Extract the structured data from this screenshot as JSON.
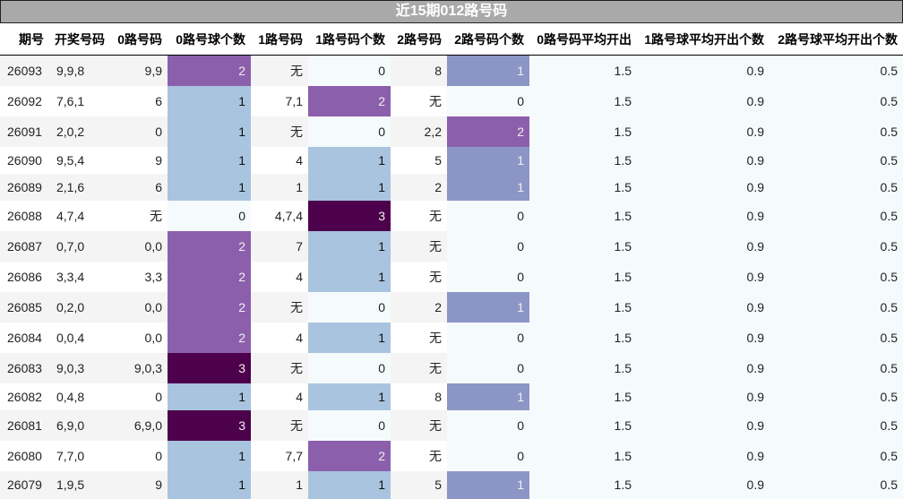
{
  "title": "近15期012路号码",
  "columns": [
    "期号",
    "开奖号码",
    "0路号码",
    "0路号球个数",
    "1路号码",
    "1路号码个数",
    "2路号码",
    "2路号码个数",
    "0路号码平均开出",
    "1路号球平均开出个数",
    "2路号球平均开出个数"
  ],
  "colors": {
    "count_3": "#4d004b",
    "count_2": "#8c5fac",
    "count_1_col0_col1": "#a8c4df",
    "count_1_col2": "#8c96c6",
    "count_0": "#f5fbfc",
    "row_stripe": "#f4f4f4",
    "header_bar": "#a9a9a9"
  },
  "rows": [
    {
      "issue": "26093",
      "draw": "9,9,8",
      "r0": "9,9",
      "r0n": "2",
      "r1": "无",
      "r1n": "0",
      "r2": "8",
      "r2n": "1",
      "avg0": "1.5",
      "avg1": "0.9",
      "avg2": "0.5"
    },
    {
      "issue": "26092",
      "draw": "7,6,1",
      "r0": "6",
      "r0n": "1",
      "r1": "7,1",
      "r1n": "2",
      "r2": "无",
      "r2n": "0",
      "avg0": "1.5",
      "avg1": "0.9",
      "avg2": "0.5"
    },
    {
      "issue": "26091",
      "draw": "2,0,2",
      "r0": "0",
      "r0n": "1",
      "r1": "无",
      "r1n": "0",
      "r2": "2,2",
      "r2n": "2",
      "avg0": "1.5",
      "avg1": "0.9",
      "avg2": "0.5"
    },
    {
      "issue": "26090",
      "draw": "9,5,4",
      "r0": "9",
      "r0n": "1",
      "r1": "4",
      "r1n": "1",
      "r2": "5",
      "r2n": "1",
      "avg0": "1.5",
      "avg1": "0.9",
      "avg2": "0.5"
    },
    {
      "issue": "26089",
      "draw": "2,1,6",
      "r0": "6",
      "r0n": "1",
      "r1": "1",
      "r1n": "1",
      "r2": "2",
      "r2n": "1",
      "avg0": "1.5",
      "avg1": "0.9",
      "avg2": "0.5"
    },
    {
      "issue": "26088",
      "draw": "4,7,4",
      "r0": "无",
      "r0n": "0",
      "r1": "4,7,4",
      "r1n": "3",
      "r2": "无",
      "r2n": "0",
      "avg0": "1.5",
      "avg1": "0.9",
      "avg2": "0.5"
    },
    {
      "issue": "26087",
      "draw": "0,7,0",
      "r0": "0,0",
      "r0n": "2",
      "r1": "7",
      "r1n": "1",
      "r2": "无",
      "r2n": "0",
      "avg0": "1.5",
      "avg1": "0.9",
      "avg2": "0.5"
    },
    {
      "issue": "26086",
      "draw": "3,3,4",
      "r0": "3,3",
      "r0n": "2",
      "r1": "4",
      "r1n": "1",
      "r2": "无",
      "r2n": "0",
      "avg0": "1.5",
      "avg1": "0.9",
      "avg2": "0.5"
    },
    {
      "issue": "26085",
      "draw": "0,2,0",
      "r0": "0,0",
      "r0n": "2",
      "r1": "无",
      "r1n": "0",
      "r2": "2",
      "r2n": "1",
      "avg0": "1.5",
      "avg1": "0.9",
      "avg2": "0.5"
    },
    {
      "issue": "26084",
      "draw": "0,0,4",
      "r0": "0,0",
      "r0n": "2",
      "r1": "4",
      "r1n": "1",
      "r2": "无",
      "r2n": "0",
      "avg0": "1.5",
      "avg1": "0.9",
      "avg2": "0.5"
    },
    {
      "issue": "26083",
      "draw": "9,0,3",
      "r0": "9,0,3",
      "r0n": "3",
      "r1": "无",
      "r1n": "0",
      "r2": "无",
      "r2n": "0",
      "avg0": "1.5",
      "avg1": "0.9",
      "avg2": "0.5"
    },
    {
      "issue": "26082",
      "draw": "0,4,8",
      "r0": "0",
      "r0n": "1",
      "r1": "4",
      "r1n": "1",
      "r2": "8",
      "r2n": "1",
      "avg0": "1.5",
      "avg1": "0.9",
      "avg2": "0.5"
    },
    {
      "issue": "26081",
      "draw": "6,9,0",
      "r0": "6,9,0",
      "r0n": "3",
      "r1": "无",
      "r1n": "0",
      "r2": "无",
      "r2n": "0",
      "avg0": "1.5",
      "avg1": "0.9",
      "avg2": "0.5"
    },
    {
      "issue": "26080",
      "draw": "7,7,0",
      "r0": "0",
      "r0n": "1",
      "r1": "7,7",
      "r1n": "2",
      "r2": "无",
      "r2n": "0",
      "avg0": "1.5",
      "avg1": "0.9",
      "avg2": "0.5"
    },
    {
      "issue": "26079",
      "draw": "1,9,5",
      "r0": "9",
      "r0n": "1",
      "r1": "1",
      "r1n": "1",
      "r2": "5",
      "r2n": "1",
      "avg0": "1.5",
      "avg1": "0.9",
      "avg2": "0.5"
    }
  ]
}
